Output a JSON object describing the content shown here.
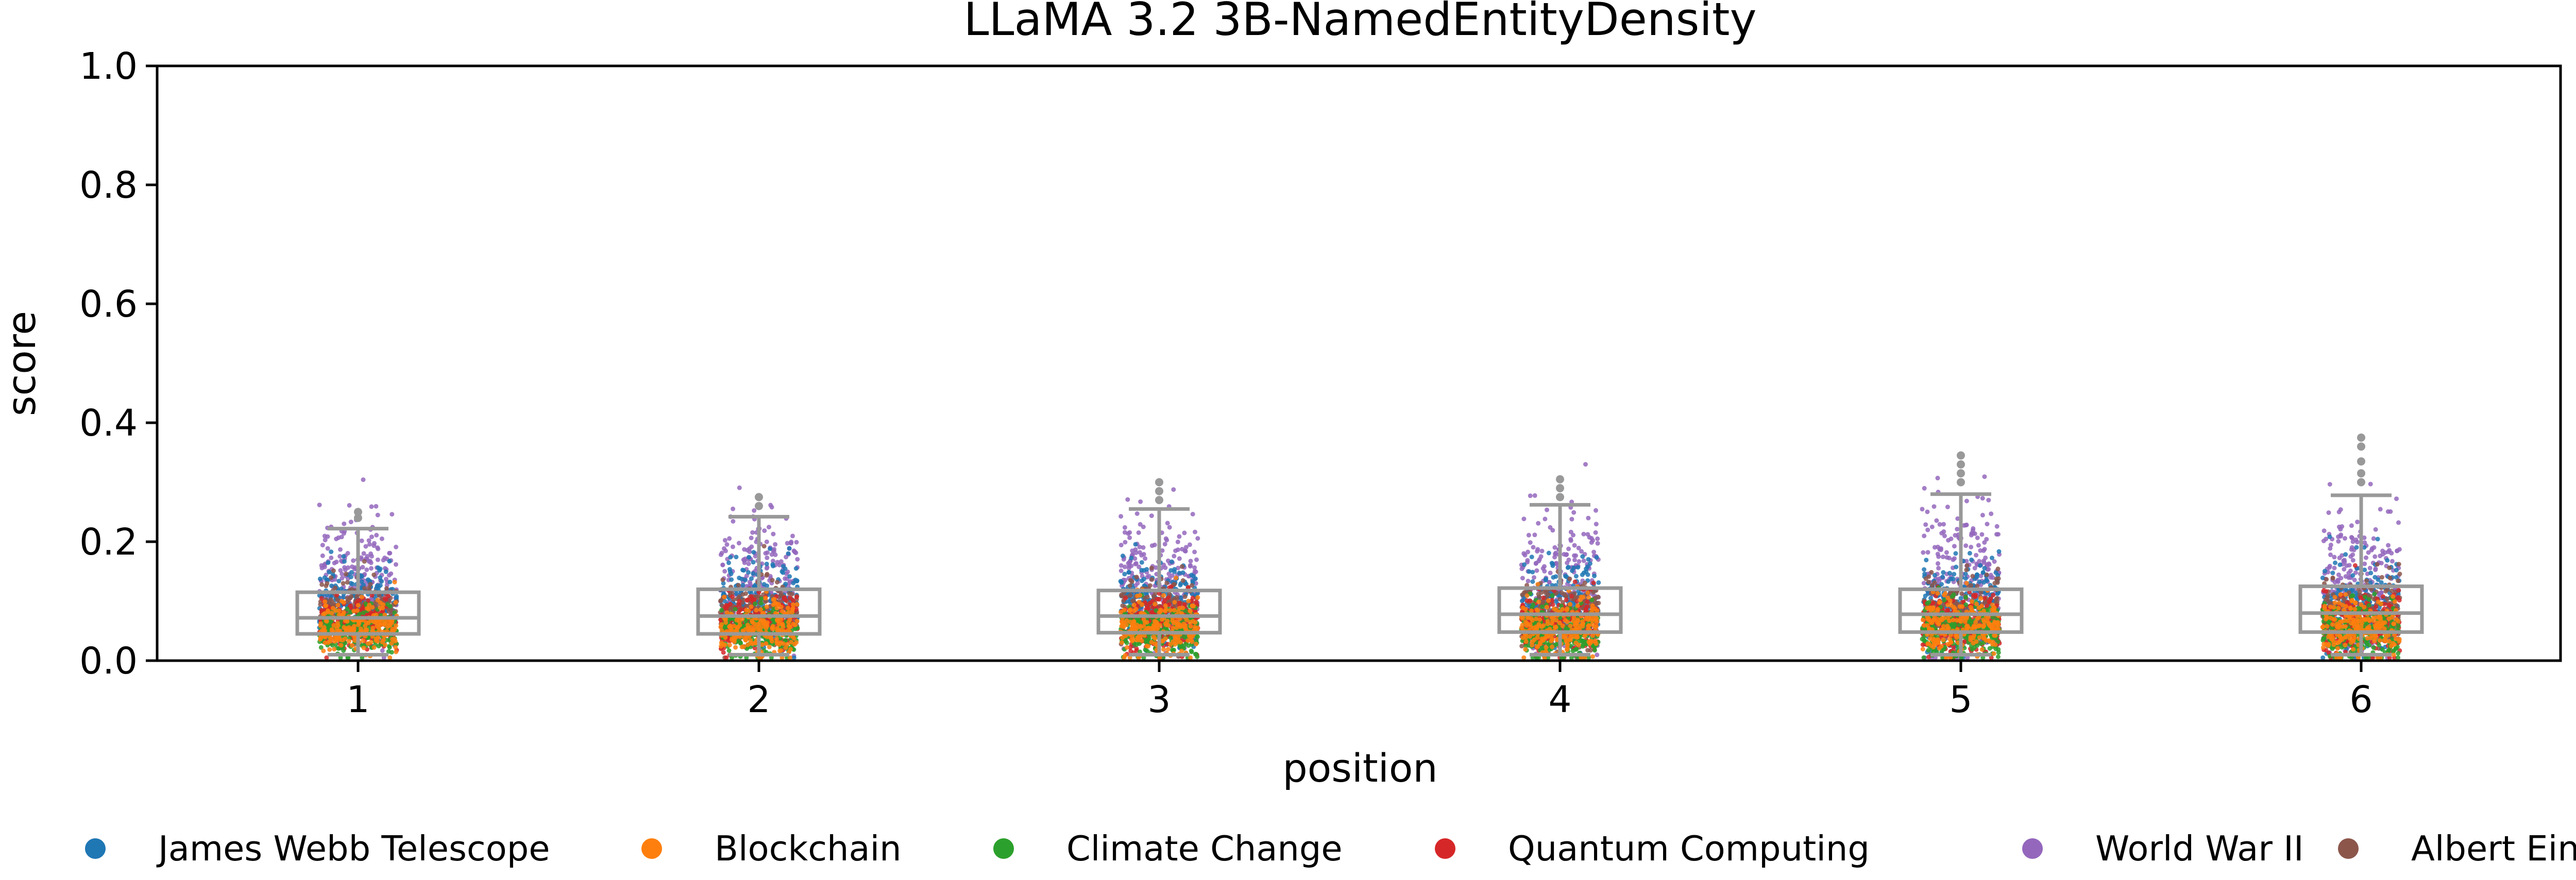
{
  "chart_data": {
    "type": "scatter",
    "title": "LLaMA 3.2 3B-NamedEntityDensity",
    "xlabel": "position",
    "ylabel": "score",
    "ylim": [
      0,
      1.0
    ],
    "y_ticks": [
      "0.0",
      "0.2",
      "0.4",
      "0.6",
      "0.8",
      "1.0"
    ],
    "categories": [
      "1",
      "2",
      "3",
      "4",
      "5",
      "6"
    ],
    "grid": false,
    "legend_position": "bottom",
    "series": [
      {
        "name": "James Webb Telescope",
        "color": "#1f77b4"
      },
      {
        "name": "Blockchain",
        "color": "#ff7f0e"
      },
      {
        "name": "Climate Change",
        "color": "#2ca02c"
      },
      {
        "name": "Quantum Computing",
        "color": "#d62728"
      },
      {
        "name": "World War II",
        "color": "#9467bd"
      },
      {
        "name": "Albert Einstein",
        "color": "#8c564b"
      }
    ],
    "boxplots": [
      {
        "position": "1",
        "whisker_low": 0.01,
        "q1": 0.045,
        "median": 0.072,
        "q3": 0.115,
        "whisker_high": 0.222,
        "outliers": [
          0.24,
          0.25
        ]
      },
      {
        "position": "2",
        "whisker_low": 0.01,
        "q1": 0.045,
        "median": 0.075,
        "q3": 0.12,
        "whisker_high": 0.242,
        "outliers": [
          0.26,
          0.275
        ]
      },
      {
        "position": "3",
        "whisker_low": 0.01,
        "q1": 0.047,
        "median": 0.075,
        "q3": 0.118,
        "whisker_high": 0.255,
        "outliers": [
          0.27,
          0.285,
          0.3
        ]
      },
      {
        "position": "4",
        "whisker_low": 0.01,
        "q1": 0.048,
        "median": 0.078,
        "q3": 0.122,
        "whisker_high": 0.262,
        "outliers": [
          0.275,
          0.29,
          0.305
        ]
      },
      {
        "position": "5",
        "whisker_low": 0.01,
        "q1": 0.048,
        "median": 0.078,
        "q3": 0.12,
        "whisker_high": 0.28,
        "outliers": [
          0.3,
          0.315,
          0.33,
          0.345
        ]
      },
      {
        "position": "6",
        "whisker_low": 0.01,
        "q1": 0.048,
        "median": 0.08,
        "q3": 0.125,
        "whisker_high": 0.278,
        "outliers": [
          0.3,
          0.315,
          0.335,
          0.36,
          0.375
        ]
      }
    ]
  }
}
